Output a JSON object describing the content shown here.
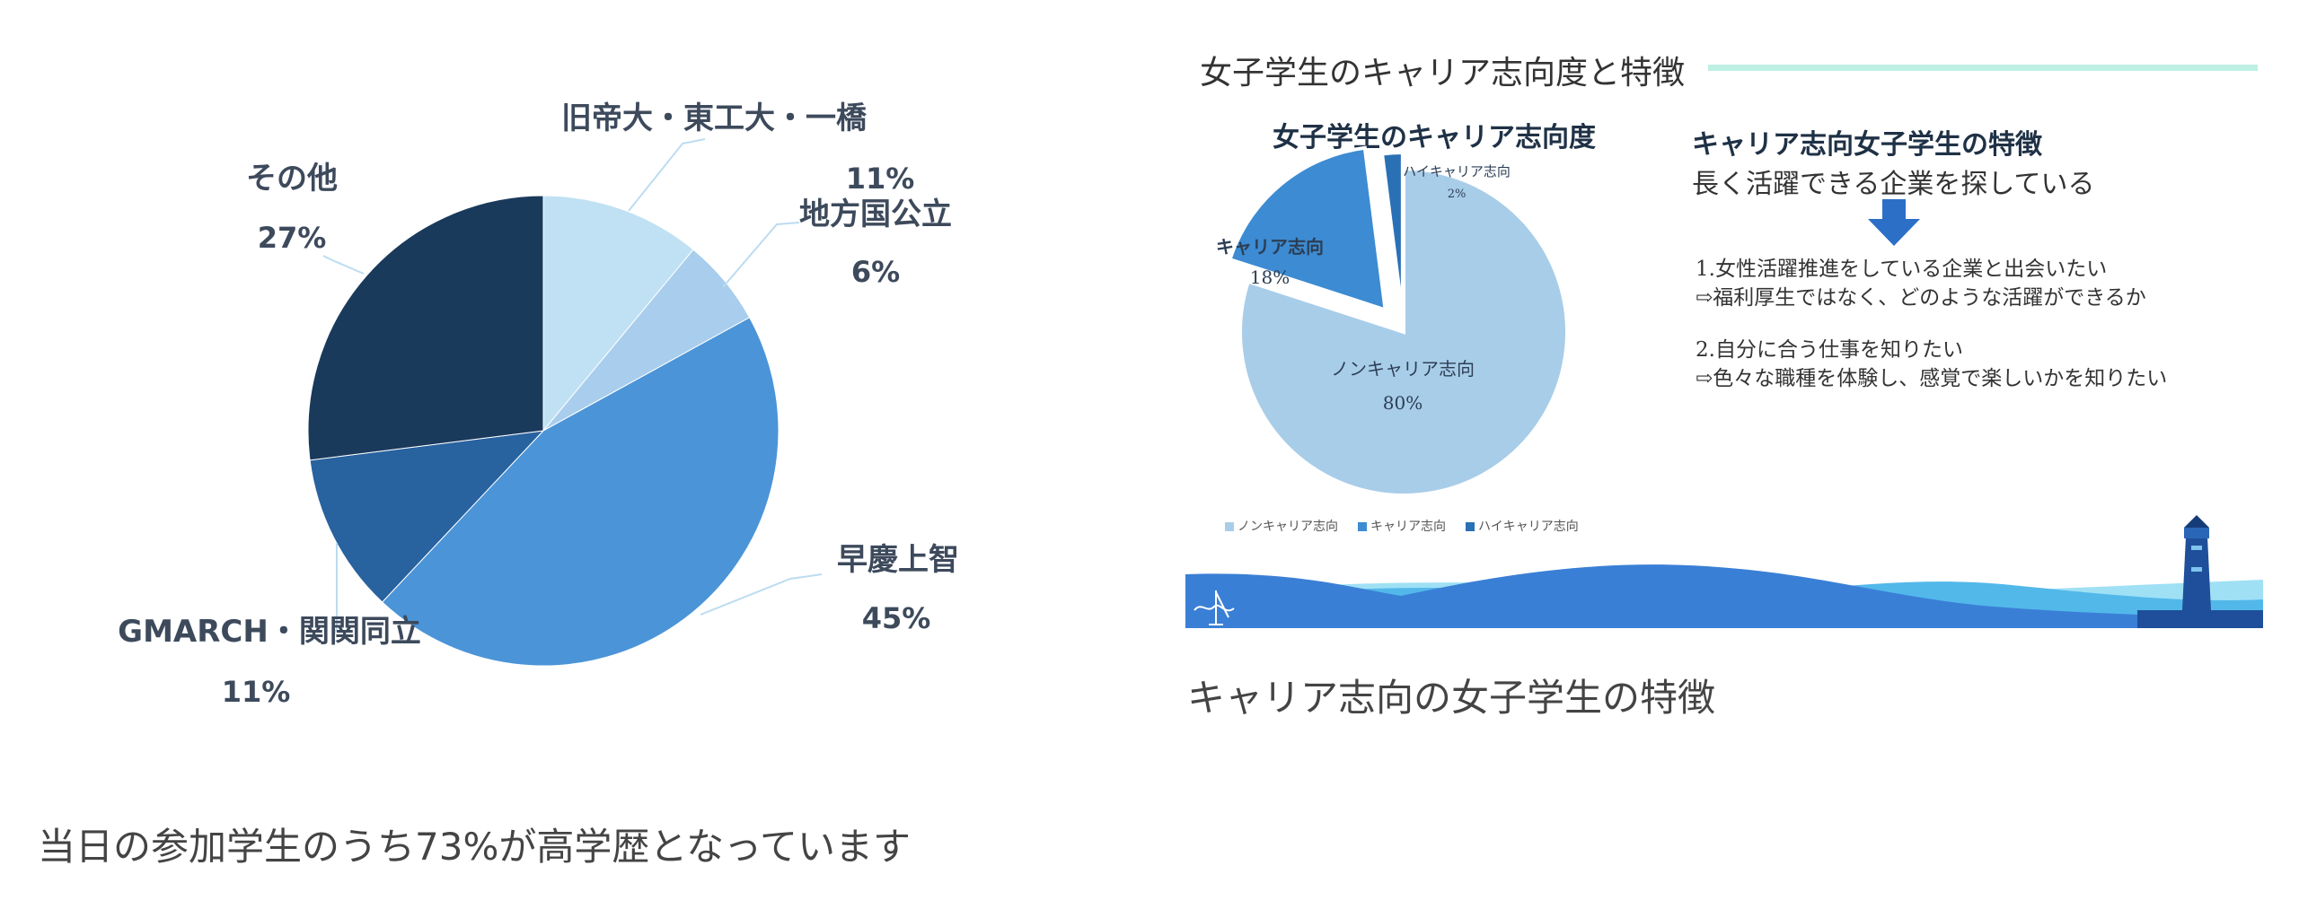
{
  "chart_data": [
    {
      "type": "pie",
      "categories": [
        "旧帝大・東工大・一橋",
        "地方国公立",
        "早慶上智",
        "GMARCH・関関同立",
        "その他"
      ],
      "values": [
        11,
        6,
        45,
        11,
        27
      ],
      "value_labels": [
        "11%",
        "6%",
        "45%",
        "11%",
        "27%"
      ],
      "colors": [
        "#c0e1f3",
        "#a9cded",
        "#4b94d8",
        "#28629f",
        "#1a3a5c"
      ]
    },
    {
      "type": "pie",
      "title": "女子学生のキャリア志向度",
      "categories": [
        "ノンキャリア志向",
        "キャリア志向",
        "ハイキャリア志向"
      ],
      "values": [
        80,
        18,
        2
      ],
      "value_labels": [
        "80%",
        "18%",
        "2%"
      ],
      "colors": [
        "#a8cde9",
        "#3d8bd2",
        "#2a70b5"
      ],
      "legend": "bottom"
    }
  ],
  "left": {
    "caption": "当日の参加学生のうち73%が高学歴となっています"
  },
  "slide": {
    "title": "女子学生のキャリア志向度と特徴",
    "accent_color": "#bdf0e2",
    "features": {
      "title": "キャリア志向女子学生の特徴",
      "subtitle": "長く活躍できる企業を探している",
      "arrow_icon": "down-arrow",
      "lines": [
        "1.女性活躍推進をしている企業と出会いたい",
        "⇨福利厚生ではなく、どのような活躍ができるか",
        "2.自分に合う仕事を知りたい",
        "⇨色々な職種を体験し、感覚で楽しいかを知りたい"
      ]
    },
    "decor": {
      "wave_colors": [
        "#3a7fd6",
        "#52b8ea",
        "#9fe0f5"
      ],
      "lighthouse_icon": "lighthouse",
      "signature_icon": "handwritten-signature"
    }
  },
  "right_caption": "キャリア志向の女子学生の特徴"
}
